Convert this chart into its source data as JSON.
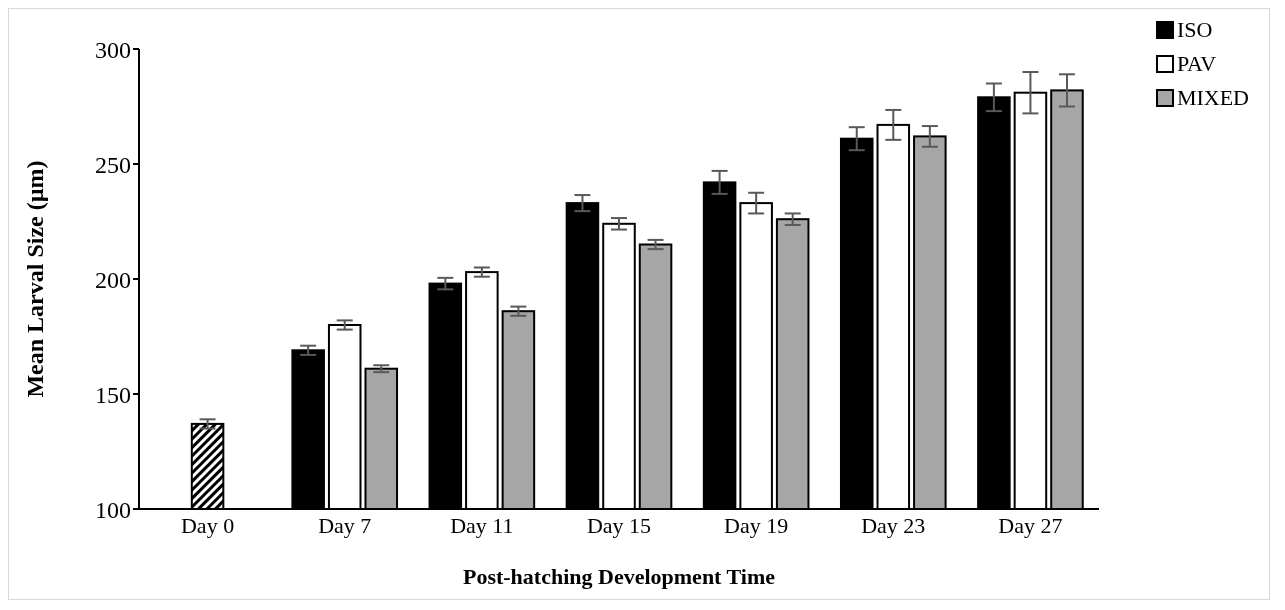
{
  "chart_data": {
    "type": "bar",
    "xlabel": "Post-hatching Development Time",
    "ylabel": "Mean Larval Size (µm)",
    "categories": [
      "Day 0",
      "Day 7",
      "Day 11",
      "Day 15",
      "Day 19",
      "Day 23",
      "Day 27"
    ],
    "series": [
      {
        "name": "ISO",
        "color": "#000000",
        "values": [
          null,
          169,
          198,
          233,
          242,
          261,
          279
        ],
        "errors": [
          null,
          2,
          2.5,
          3.5,
          5,
          5,
          6
        ]
      },
      {
        "name": "PAV",
        "color": "#ffffff",
        "values": [
          null,
          180,
          203,
          224,
          233,
          267,
          281
        ],
        "errors": [
          null,
          2,
          2,
          2.5,
          4.5,
          6.5,
          9
        ]
      },
      {
        "name": "MIXED",
        "color": "#a6a6a6",
        "values": [
          null,
          161,
          186,
          215,
          226,
          262,
          282
        ],
        "errors": [
          null,
          1.5,
          2,
          2,
          2.5,
          4.5,
          7
        ]
      },
      {
        "color": "#000000",
        "values": [
          137,
          null,
          null,
          null,
          null,
          null,
          null
        ],
        "errors": [
          2,
          null,
          null,
          null,
          null,
          null,
          null
        ]
      }
    ],
    "ylim": [
      100,
      300
    ],
    "yticks": [
      100,
      150,
      200,
      250,
      300
    ],
    "grid": false,
    "legend": "top right"
  }
}
